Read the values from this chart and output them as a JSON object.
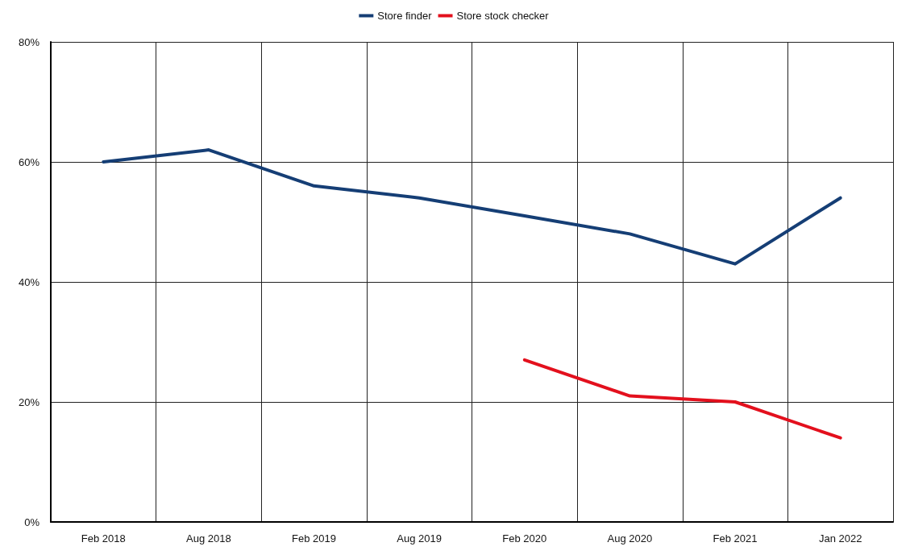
{
  "chart_data": {
    "type": "line",
    "categories": [
      "Feb 2018",
      "Aug 2018",
      "Feb 2019",
      "Aug 2019",
      "Feb 2020",
      "Aug 2020",
      "Feb 2021",
      "Jan 2022"
    ],
    "series": [
      {
        "name": "Store finder",
        "color": "#153e75",
        "values": [
          60,
          62,
          56,
          54,
          51,
          48,
          43,
          54
        ]
      },
      {
        "name": "Store stock checker",
        "color": "#e3101d",
        "values": [
          null,
          null,
          null,
          null,
          27,
          21,
          20,
          14
        ]
      }
    ],
    "ylim": [
      0,
      80
    ],
    "yticks": [
      {
        "value": 0,
        "label": "0%"
      },
      {
        "value": 20,
        "label": "20%"
      },
      {
        "value": 40,
        "label": "40%"
      },
      {
        "value": 60,
        "label": "60%"
      },
      {
        "value": 80,
        "label": "80%"
      }
    ],
    "grid": true,
    "legend": "top",
    "marker": "none",
    "line_style": "solid"
  }
}
